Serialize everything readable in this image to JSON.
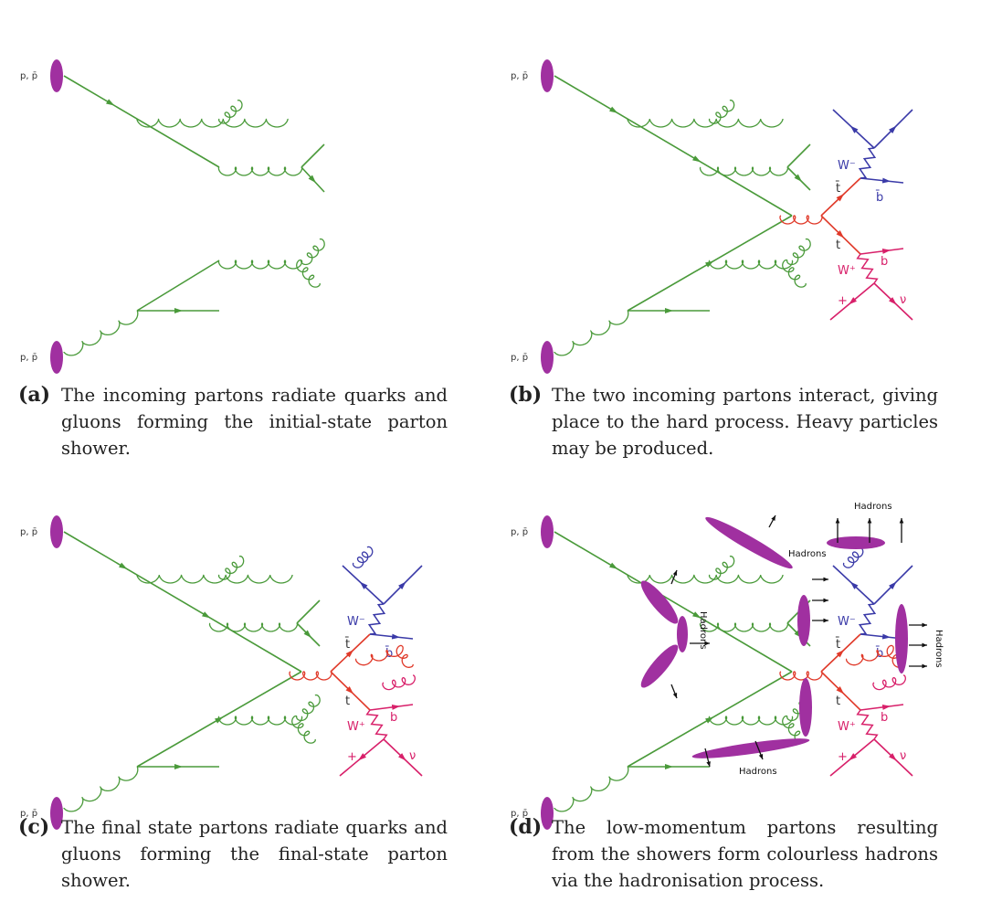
{
  "panels": [
    {
      "tag": "(a)",
      "caption": "The incoming partons radiate quarks and gluons forming the initial-state parton shower."
    },
    {
      "tag": "(b)",
      "caption": "The two incoming partons interact, giving place to the hard process. Heavy particles may be produced."
    },
    {
      "tag": "(c)",
      "caption": "The final state partons radiate quarks and gluons forming the final-state parton shower."
    },
    {
      "tag": "(d)",
      "caption": "The low-momentum partons resulting from the showers form colourless hadrons via the hadronisation process."
    }
  ],
  "labels": {
    "beam": "p, p̄",
    "w_minus": "W⁻",
    "w_plus": "W⁺",
    "tbar": "t̄",
    "t": "t",
    "bbar": "b̄",
    "b": "b",
    "lplus": "+",
    "nu": "ν",
    "hadrons": "Hadrons"
  },
  "colors": {
    "green": "#4a9a3a",
    "blue": "#3a3aa8",
    "red": "#e03a2a",
    "magenta": "#d8206a",
    "hadron": "#a030a0"
  }
}
